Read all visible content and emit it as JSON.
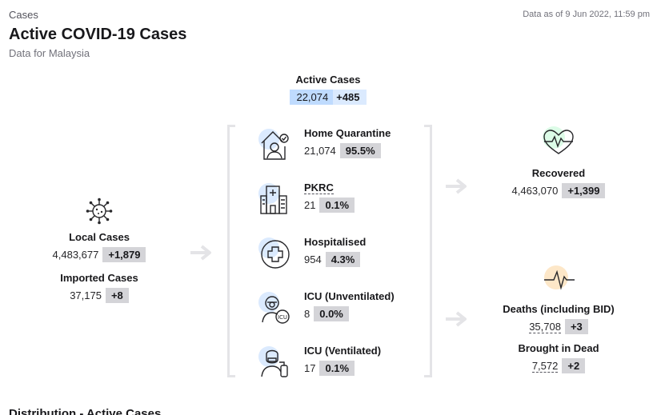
{
  "header": {
    "breadcrumb": "Cases",
    "title": "Active COVID-19 Cases",
    "subtitle": "Data for Malaysia",
    "as_of": "Data as of 9 Jun 2022, 11:59 pm"
  },
  "active": {
    "label": "Active Cases",
    "value": "22,074",
    "delta": "+485"
  },
  "inflow": {
    "local": {
      "label": "Local Cases",
      "value": "4,483,677",
      "delta": "+1,879",
      "icon": "virus-icon"
    },
    "imported": {
      "label": "Imported Cases",
      "value": "37,175",
      "delta": "+8"
    }
  },
  "states": [
    {
      "label": "Home Quarantine",
      "value": "21,074",
      "pct": "95.5%",
      "icon": "home-quarantine-icon"
    },
    {
      "label": "PKRC",
      "value": "21",
      "pct": "0.1%",
      "icon": "hospital-building-icon"
    },
    {
      "label": "Hospitalised",
      "value": "954",
      "pct": "4.3%",
      "icon": "medical-cross-icon"
    },
    {
      "label": "ICU (Unventilated)",
      "value": "8",
      "pct": "0.0%",
      "icon": "icu-patient-icon"
    },
    {
      "label": "ICU (Ventilated)",
      "value": "17",
      "pct": "0.1%",
      "icon": "ventilated-patient-icon"
    }
  ],
  "outflow": {
    "recovered": {
      "label": "Recovered",
      "value": "4,463,070",
      "delta": "+1,399",
      "icon": "heartbeat-icon"
    },
    "deaths": {
      "label": "Deaths (including BID)",
      "value": "35,708",
      "delta": "+3",
      "icon": "pulse-line-icon"
    },
    "bid": {
      "label": "Brought in Dead",
      "value": "7,572",
      "delta": "+2"
    }
  },
  "footer": {
    "section_title": "Distribution - Active Cases"
  },
  "colors": {
    "chip": "#d4d4d8",
    "active_highlight": "#bfdbfe",
    "recovered_circle": "#dcfce7",
    "deaths_circle": "#fde7c8",
    "state_circle": "#dbeafe",
    "arrow": "#e4e4e7"
  }
}
